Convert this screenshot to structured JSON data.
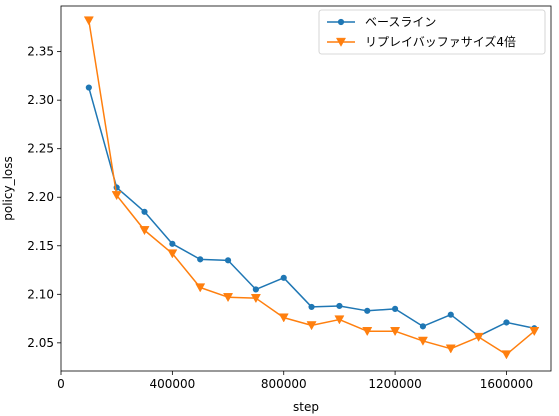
{
  "chart_data": {
    "type": "line",
    "title": "",
    "xlabel": "step",
    "ylabel": "policy_loss",
    "xlim": [
      0,
      1760000
    ],
    "ylim": [
      2.021,
      2.397
    ],
    "xticks": [
      0,
      400000,
      800000,
      1200000,
      1600000
    ],
    "xtick_labels": [
      "0",
      "400000",
      "800000",
      "1200000",
      "1600000"
    ],
    "yticks": [
      2.05,
      2.1,
      2.15,
      2.2,
      2.25,
      2.3,
      2.35
    ],
    "ytick_labels": [
      "2.05",
      "2.10",
      "2.15",
      "2.20",
      "2.25",
      "2.30",
      "2.35"
    ],
    "grid": false,
    "legend_position": "top-right",
    "x": [
      100000,
      200000,
      300000,
      400000,
      500000,
      600000,
      700000,
      800000,
      900000,
      1000000,
      1100000,
      1200000,
      1300000,
      1400000,
      1500000,
      1600000,
      1700000
    ],
    "series": [
      {
        "name": "ベースライン",
        "color": "#1f77b4",
        "marker": "circle",
        "values": [
          2.313,
          2.21,
          2.185,
          2.152,
          2.136,
          2.135,
          2.105,
          2.117,
          2.087,
          2.088,
          2.083,
          2.085,
          2.067,
          2.079,
          2.057,
          2.071,
          2.065
        ]
      },
      {
        "name": "リプレイバッファサイズ4倍",
        "color": "#ff7f0e",
        "marker": "triangle-down",
        "values": [
          2.382,
          2.202,
          2.166,
          2.142,
          2.107,
          2.097,
          2.096,
          2.076,
          2.068,
          2.074,
          2.062,
          2.062,
          2.052,
          2.044,
          2.056,
          2.038,
          2.062
        ]
      }
    ]
  }
}
